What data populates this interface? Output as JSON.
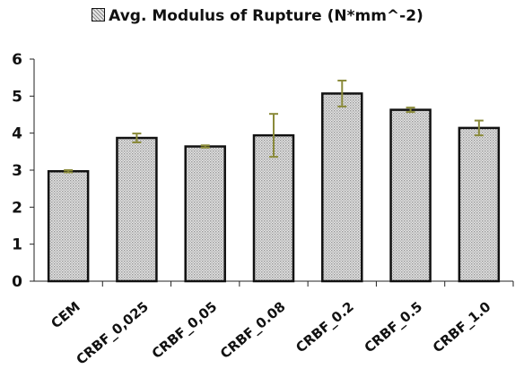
{
  "chart_data": {
    "type": "bar",
    "legend": "Avg. Modulus of Rupture (N*mm^-2)",
    "legend_position": "top-center",
    "categories": [
      "CEM",
      "CRBF_0,025",
      "CRBF_0,05",
      "CRBF_0.08",
      "CRBF_0.2",
      "CRBF_0.5",
      "CRBF_1.0"
    ],
    "series": [
      {
        "name": "Avg. Modulus of Rupture (N*mm^-2)",
        "values": [
          2.97,
          3.87,
          3.64,
          3.94,
          5.07,
          4.63,
          4.14
        ],
        "error": [
          0.03,
          0.12,
          0.03,
          0.58,
          0.35,
          0.06,
          0.2
        ]
      }
    ],
    "ylim": [
      0,
      6
    ],
    "yticks": [
      "0",
      "1",
      "2",
      "3",
      "4",
      "5",
      "6"
    ],
    "grid": false,
    "colors": {
      "bar_pattern": "#9a9a9a",
      "bar_outline": "#111111",
      "error_bar": "#8a8a3a"
    }
  }
}
